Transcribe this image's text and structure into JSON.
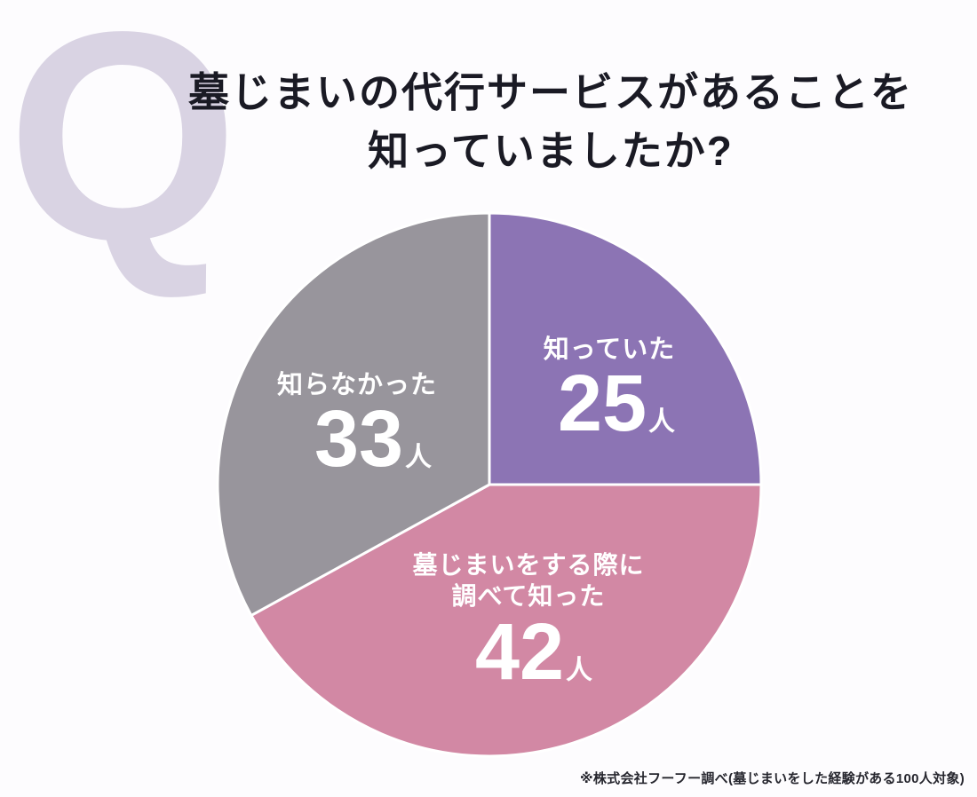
{
  "page": {
    "background": "#fdfcfe"
  },
  "q_mark": {
    "letter": "Q",
    "color": "#d9d3e3"
  },
  "title": {
    "line1": "墓じまいの代行サービスがあることを",
    "line2": "知っていましたか?",
    "color": "#1a1a24"
  },
  "chart_data": {
    "type": "pie",
    "title": "墓じまいの代行サービスがあることを知っていましたか?",
    "unit": "人",
    "total": 100,
    "start_angle_deg_from_top": 0,
    "direction": "clockwise",
    "divider_color": "#ffffff",
    "slices": [
      {
        "label": "知っていた",
        "value": 25,
        "unit": "人",
        "color": "#8c74b4"
      },
      {
        "label": "墓じまいをする際に調べて知った",
        "label_lines": [
          "墓じまいをする際に",
          "調べて知った"
        ],
        "value": 42,
        "unit": "人",
        "color": "#d288a4"
      },
      {
        "label": "知らなかった",
        "value": 33,
        "unit": "人",
        "color": "#98959c"
      }
    ]
  },
  "footnote": {
    "text": "※株式会社フーフー調べ(墓じまいをした経験がある100人対象)",
    "color": "#26262e"
  }
}
